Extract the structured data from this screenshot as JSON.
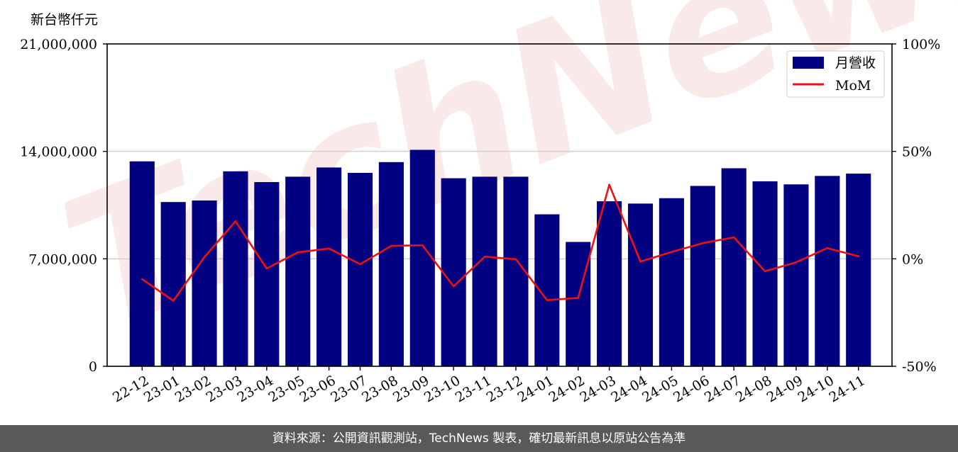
{
  "chart_data": {
    "type": "bar",
    "unit_label": "新台幣仟元",
    "categories": [
      "22-12",
      "23-01",
      "23-02",
      "23-03",
      "23-04",
      "23-05",
      "23-06",
      "23-07",
      "23-08",
      "23-09",
      "23-10",
      "23-11",
      "23-12",
      "24-01",
      "24-02",
      "24-03",
      "24-04",
      "24-05",
      "24-06",
      "24-07",
      "24-08",
      "24-09",
      "24-10",
      "24-11"
    ],
    "series": [
      {
        "name": "月營收",
        "kind": "bar",
        "axis": "left",
        "color": "#000080",
        "values": [
          13350000,
          10700000,
          10800000,
          12700000,
          12000000,
          12350000,
          12950000,
          12600000,
          13300000,
          14100000,
          12250000,
          12350000,
          12350000,
          9900000,
          8100000,
          10750000,
          10600000,
          10950000,
          11750000,
          12900000,
          12050000,
          11850000,
          12400000,
          12550000
        ]
      },
      {
        "name": "MoM",
        "kind": "line",
        "axis": "right",
        "color": "#ee1111",
        "values": [
          -9.5,
          -19.5,
          0.8,
          17.5,
          -4.5,
          3,
          4.8,
          -2.5,
          6,
          6.3,
          -12.8,
          1,
          -0.2,
          -19.2,
          -18.2,
          34.5,
          -1.3,
          3.2,
          7.3,
          10,
          -5.8,
          -1.6,
          5,
          1.2
        ]
      }
    ],
    "y_left": {
      "range": [
        0,
        21000000
      ],
      "ticks": [
        0,
        7000000,
        14000000,
        21000000
      ],
      "tick_labels": [
        "0",
        "7,000,000",
        "14,000,000",
        "21,000,000"
      ]
    },
    "y_right": {
      "range": [
        -50,
        100
      ],
      "ticks": [
        -50,
        0,
        50,
        100
      ],
      "tick_labels": [
        "-50%",
        "0%",
        "50%",
        "100%"
      ]
    },
    "grid": true,
    "legend": "top-right"
  },
  "watermark": "TechNews",
  "footer": {
    "text": "資料來源：公開資訊觀測站，TechNews 製表，確切最新訊息以原站公告為準"
  }
}
